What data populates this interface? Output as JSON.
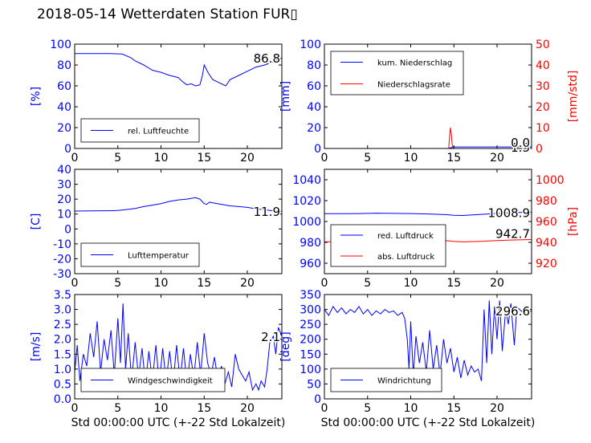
{
  "page": {
    "title": "2018-05-14 Wetterdaten Station FUR▯"
  },
  "colors": {
    "left_axis": "#0000ff",
    "right_axis": "#ff0000",
    "frame": "#000000"
  },
  "chart_data": [
    {
      "type": "line",
      "ylabel": "[%]",
      "xlim": [
        0,
        24
      ],
      "ylim": [
        0,
        100
      ],
      "xticks": [
        0,
        5,
        10,
        15,
        20
      ],
      "yticks": [
        0,
        20,
        40,
        60,
        80,
        100
      ],
      "legend_position": "bottom-left",
      "end_label": "86.8",
      "series": [
        {
          "name": "rel. Luftfeuchte",
          "color": "#0000ff",
          "axis": "left",
          "x": [
            0,
            2,
            4,
            5.5,
            6.5,
            7,
            8,
            9,
            10,
            11,
            12,
            12.5,
            13,
            13.5,
            14,
            14.5,
            14.8,
            15,
            15.5,
            16,
            16.5,
            17,
            17.5,
            18,
            19,
            20,
            21,
            22,
            23,
            24
          ],
          "y": [
            91,
            91,
            91,
            90.5,
            87,
            84,
            80,
            75,
            73,
            70,
            68,
            64,
            61,
            62,
            60,
            61,
            70,
            80,
            72,
            66,
            64,
            62,
            60,
            66,
            70,
            74,
            78,
            80,
            83,
            86.8
          ]
        }
      ]
    },
    {
      "type": "line",
      "ylabel": "[mm]",
      "ylabel_right": "[mm/std]",
      "xlim": [
        0,
        24
      ],
      "ylim": [
        0,
        100
      ],
      "ylim_right": [
        0,
        50
      ],
      "xticks": [
        0,
        5,
        10,
        15,
        20
      ],
      "yticks": [
        0,
        20,
        40,
        60,
        80,
        100
      ],
      "yticks_right": [
        0,
        10,
        20,
        30,
        40,
        50
      ],
      "legend_position": "top-left",
      "end_label": "1.5",
      "end_label_right": "0.0",
      "series": [
        {
          "name": "kum. Niederschlag",
          "color": "#0000ff",
          "axis": "left",
          "x": [
            0,
            14.4,
            14.6,
            14.8,
            15,
            24
          ],
          "y": [
            0,
            0,
            0.6,
            1.2,
            1.5,
            1.5
          ]
        },
        {
          "name": "Niederschlagsrate",
          "color": "#ff0000",
          "axis": "right",
          "x": [
            0,
            14.4,
            14.5,
            14.6,
            14.7,
            14.8,
            14.9,
            24
          ],
          "y": [
            0,
            0,
            6,
            10,
            7,
            2,
            0,
            0
          ]
        }
      ]
    },
    {
      "type": "line",
      "ylabel": "[C]",
      "xlim": [
        0,
        24
      ],
      "ylim": [
        -30,
        40
      ],
      "xticks": [
        0,
        5,
        10,
        15,
        20
      ],
      "yticks": [
        -30,
        -20,
        -10,
        0,
        10,
        20,
        30,
        40
      ],
      "legend_position": "bottom-left",
      "end_label": "11.9",
      "series": [
        {
          "name": "Lufttemperatur",
          "color": "#0000ff",
          "axis": "left",
          "x": [
            0,
            2,
            4,
            5,
            6,
            7,
            8,
            9,
            10,
            11,
            12,
            13,
            14,
            14.5,
            15,
            15.3,
            15.6,
            16,
            17,
            18,
            19,
            20,
            21,
            22,
            23,
            24
          ],
          "y": [
            12,
            12.1,
            12.2,
            12.4,
            13,
            13.8,
            15,
            16,
            17,
            18.5,
            19.5,
            20,
            21,
            20,
            17,
            16.5,
            18,
            17.5,
            16.5,
            15.5,
            15,
            14.5,
            13.5,
            12.8,
            12.2,
            11.9
          ]
        }
      ]
    },
    {
      "type": "line",
      "ylabel_right": "[hPa]",
      "xlim": [
        0,
        24
      ],
      "ylim": [
        950,
        1050
      ],
      "ylim_right": [
        910,
        1010
      ],
      "xticks": [
        0,
        5,
        10,
        15,
        20
      ],
      "yticks": [
        960,
        980,
        1000,
        1020,
        1040
      ],
      "yticks_right": [
        920,
        940,
        960,
        980,
        1000
      ],
      "legend_position": "bottom-left",
      "end_label": "1008.9",
      "end_label_right": "942.7",
      "series": [
        {
          "name": "red. Luftdruck",
          "color": "#0000ff",
          "axis": "left",
          "x": [
            0,
            2,
            4,
            6,
            8,
            10,
            12,
            14,
            15,
            16,
            18,
            20,
            22,
            24
          ],
          "y": [
            1007.5,
            1007.5,
            1007.6,
            1008,
            1007.8,
            1007.6,
            1007.2,
            1006.6,
            1006,
            1005.8,
            1006.8,
            1007.8,
            1008.5,
            1008.9
          ]
        },
        {
          "name": "abs. Luftdruck",
          "color": "#ff0000",
          "axis": "right",
          "x": [
            0,
            2,
            4,
            6,
            8,
            10,
            12,
            14,
            15,
            16,
            18,
            20,
            22,
            24
          ],
          "y": [
            940.5,
            940.8,
            941,
            941.5,
            941.8,
            942,
            942,
            941.8,
            941,
            940.5,
            941,
            941.8,
            942.3,
            942.7
          ]
        }
      ]
    },
    {
      "type": "line",
      "xlabel": "Std 00:00:00 UTC (+-22 Std Lokalzeit)",
      "ylabel": "[m/s]",
      "xlim": [
        0,
        24
      ],
      "ylim": [
        0,
        3.5
      ],
      "xticks": [
        0,
        5,
        10,
        15,
        20
      ],
      "yticks": [
        0.0,
        0.5,
        1.0,
        1.5,
        2.0,
        2.5,
        3.0,
        3.5
      ],
      "legend_position": "bottom-left",
      "end_label": "2.1",
      "series": [
        {
          "name": "Windgeschwindigkeit",
          "color": "#0000ff",
          "axis": "left",
          "x": [
            0,
            0.3,
            0.6,
            1,
            1.4,
            1.8,
            2.2,
            2.6,
            3,
            3.4,
            3.8,
            4.2,
            4.6,
            5,
            5.3,
            5.6,
            5.9,
            6.2,
            6.6,
            7,
            7.4,
            7.8,
            8.2,
            8.6,
            9,
            9.4,
            9.8,
            10.2,
            10.6,
            11,
            11.4,
            11.8,
            12.2,
            12.6,
            13,
            13.4,
            13.8,
            14.2,
            14.6,
            15,
            15.4,
            15.8,
            16.2,
            16.6,
            17,
            17.4,
            17.8,
            18.2,
            18.6,
            19,
            19.4,
            19.8,
            20.2,
            20.6,
            21,
            21.3,
            21.6,
            22,
            22.3,
            22.6,
            23,
            23.3,
            23.6,
            24
          ],
          "y": [
            0.9,
            1.8,
            0.6,
            1.5,
            1.1,
            2.2,
            1.4,
            2.6,
            0.9,
            2.0,
            1.3,
            2.3,
            0.8,
            2.7,
            1.2,
            3.2,
            1.0,
            2.2,
            0.6,
            1.9,
            0.7,
            1.7,
            0.5,
            1.6,
            0.6,
            1.8,
            0.5,
            1.7,
            0.6,
            1.6,
            0.5,
            1.8,
            0.6,
            1.7,
            0.5,
            1.5,
            0.7,
            1.9,
            0.8,
            2.2,
            1.2,
            0.8,
            1.4,
            0.6,
            1.1,
            0.5,
            0.9,
            0.4,
            1.5,
            1.0,
            0.8,
            0.6,
            0.9,
            0.3,
            0.5,
            0.3,
            0.6,
            0.4,
            1.0,
            1.9,
            2.1,
            1.5,
            2.4,
            2.1
          ]
        }
      ]
    },
    {
      "type": "line",
      "xlabel": "Std 00:00:00 UTC (+-22 Std Lokalzeit)",
      "ylabel": "[deg]",
      "xlim": [
        0,
        24
      ],
      "ylim": [
        0,
        350
      ],
      "xticks": [
        0,
        5,
        10,
        15,
        20
      ],
      "yticks": [
        0,
        50,
        100,
        150,
        200,
        250,
        300,
        350
      ],
      "legend_position": "bottom-left",
      "end_label": "296.6",
      "series": [
        {
          "name": "Windrichtung",
          "color": "#0000ff",
          "axis": "left",
          "x": [
            0,
            0.5,
            1,
            1.5,
            2,
            2.5,
            3,
            3.5,
            4,
            4.5,
            5,
            5.5,
            6,
            6.5,
            7,
            7.5,
            8,
            8.5,
            9,
            9.3,
            9.6,
            9.8,
            10,
            10.3,
            10.6,
            11,
            11.4,
            11.8,
            12.2,
            12.6,
            13,
            13.4,
            13.8,
            14.2,
            14.6,
            15,
            15.4,
            15.8,
            16.2,
            16.6,
            17,
            17.4,
            17.8,
            18.2,
            18.5,
            18.8,
            19.1,
            19.4,
            19.7,
            20,
            20.3,
            20.6,
            21,
            21.3,
            21.6,
            22,
            22.3,
            22.6,
            23,
            23.3,
            23.6,
            24
          ],
          "y": [
            300,
            280,
            310,
            290,
            305,
            285,
            300,
            290,
            310,
            285,
            300,
            280,
            295,
            285,
            300,
            290,
            295,
            280,
            290,
            270,
            200,
            100,
            260,
            80,
            210,
            120,
            190,
            90,
            230,
            100,
            180,
            80,
            200,
            120,
            170,
            90,
            140,
            70,
            130,
            80,
            110,
            90,
            100,
            60,
            300,
            120,
            330,
            150,
            310,
            200,
            330,
            160,
            300,
            250,
            320,
            180,
            310,
            300,
            290,
            310,
            285,
            296.6
          ]
        }
      ]
    }
  ]
}
